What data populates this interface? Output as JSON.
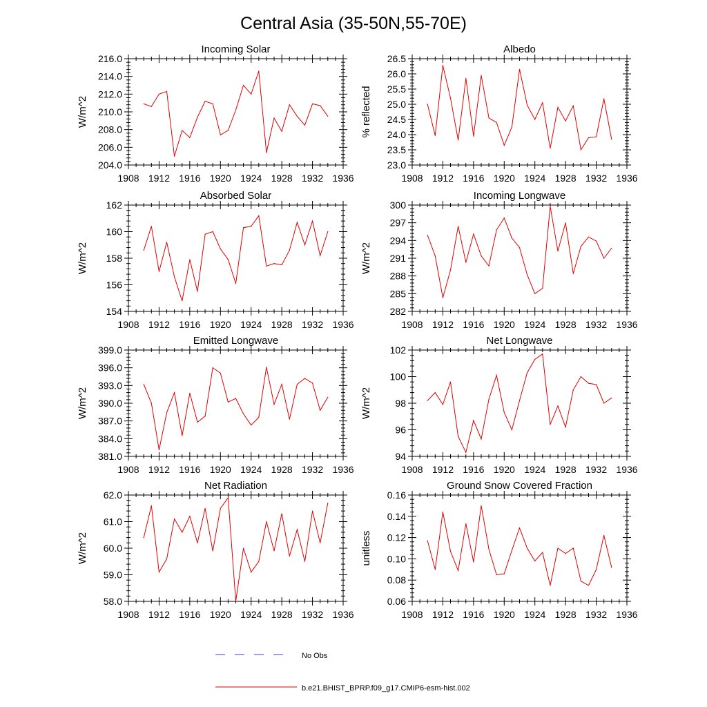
{
  "page_title": "Central Asia (35-50N,55-70E)",
  "legend": {
    "obs_label": "No Obs",
    "model_label": "b.e21.BHIST_BPRP.f09_g17.CMIP6-esm-hist.002",
    "obs_color": "#3b3bd6",
    "model_color": "#e00000"
  },
  "chart_data": [
    {
      "type": "line",
      "title": "Incoming Solar",
      "ylabel": "W/m^2",
      "xlim": [
        1908,
        1936
      ],
      "ylim": [
        204,
        216
      ],
      "x_ticks": [
        "1908",
        "1912",
        "1916",
        "1920",
        "1924",
        "1928",
        "1932",
        "1936"
      ],
      "y_ticks": [
        "204.0",
        "206.0",
        "208.0",
        "210.0",
        "212.0",
        "214.0",
        "216.0"
      ],
      "y_label_ticks": [
        204,
        206,
        208,
        210,
        212,
        214,
        216
      ],
      "x": [
        1910,
        1911,
        1912,
        1913,
        1914,
        1915,
        1916,
        1917,
        1918,
        1919,
        1920,
        1921,
        1922,
        1923,
        1924,
        1925,
        1926,
        1927,
        1928,
        1929,
        1930,
        1931,
        1932,
        1933,
        1934
      ],
      "values": [
        210.9,
        210.6,
        212.0,
        212.3,
        205.0,
        207.9,
        207.1,
        209.4,
        211.2,
        210.9,
        207.4,
        207.9,
        210.2,
        213.0,
        212.0,
        214.6,
        205.4,
        209.3,
        207.8,
        210.8,
        209.5,
        208.5,
        210.9,
        210.7,
        209.5
      ]
    },
    {
      "type": "line",
      "title": "Albedo",
      "ylabel": "% reflected",
      "xlim": [
        1908,
        1936
      ],
      "ylim": [
        23,
        26.5
      ],
      "x_ticks": [
        "1908",
        "1912",
        "1916",
        "1920",
        "1924",
        "1928",
        "1932",
        "1936"
      ],
      "y_ticks": [
        "23.0",
        "23.5",
        "24.0",
        "24.5",
        "25.0",
        "25.5",
        "26.0",
        "26.5"
      ],
      "y_label_ticks": [
        23,
        23.5,
        24,
        24.5,
        25,
        25.5,
        26,
        26.5
      ],
      "x": [
        1910,
        1911,
        1912,
        1913,
        1914,
        1915,
        1916,
        1917,
        1918,
        1919,
        1920,
        1921,
        1922,
        1923,
        1924,
        1925,
        1926,
        1927,
        1928,
        1929,
        1930,
        1931,
        1932,
        1933,
        1934
      ],
      "values": [
        25.0,
        23.97,
        26.28,
        25.2,
        23.82,
        25.85,
        23.95,
        25.95,
        24.55,
        24.4,
        23.65,
        24.25,
        26.15,
        24.97,
        24.5,
        25.05,
        23.55,
        24.9,
        24.45,
        24.95,
        23.5,
        23.9,
        23.93,
        25.18,
        23.85
      ]
    },
    {
      "type": "line",
      "title": "Absorbed Solar",
      "ylabel": "W/m^2",
      "xlim": [
        1908,
        1936
      ],
      "ylim": [
        154,
        162
      ],
      "x_ticks": [
        "1908",
        "1912",
        "1916",
        "1920",
        "1924",
        "1928",
        "1932",
        "1936"
      ],
      "y_ticks": [
        "154",
        "156",
        "158",
        "160",
        "162"
      ],
      "y_label_ticks": [
        154,
        156,
        158,
        160,
        162
      ],
      "x": [
        1910,
        1911,
        1912,
        1913,
        1914,
        1915,
        1916,
        1917,
        1918,
        1919,
        1920,
        1921,
        1922,
        1923,
        1924,
        1925,
        1926,
        1927,
        1928,
        1929,
        1930,
        1931,
        1932,
        1933,
        1934
      ],
      "values": [
        158.6,
        160.4,
        157.0,
        159.2,
        156.6,
        154.8,
        157.9,
        155.5,
        159.8,
        160.0,
        158.7,
        157.9,
        156.1,
        160.3,
        160.4,
        161.2,
        157.4,
        157.6,
        157.5,
        158.6,
        160.7,
        159.0,
        160.8,
        158.2,
        160.0
      ]
    },
    {
      "type": "line",
      "title": "Incoming Longwave",
      "ylabel": "W/m^2",
      "xlim": [
        1908,
        1936
      ],
      "ylim": [
        282,
        300
      ],
      "x_ticks": [
        "1908",
        "1912",
        "1916",
        "1920",
        "1924",
        "1928",
        "1932",
        "1936"
      ],
      "y_ticks": [
        "282",
        "285",
        "288",
        "291",
        "294",
        "297",
        "300"
      ],
      "y_label_ticks": [
        282,
        285,
        288,
        291,
        294,
        297,
        300
      ],
      "x": [
        1910,
        1911,
        1912,
        1913,
        1914,
        1915,
        1916,
        1917,
        1918,
        1919,
        1920,
        1921,
        1922,
        1923,
        1924,
        1925,
        1926,
        1927,
        1928,
        1929,
        1930,
        1931,
        1932,
        1933,
        1934
      ],
      "values": [
        294.9,
        291.4,
        284.3,
        289.0,
        296.4,
        290.3,
        295.1,
        291.4,
        289.7,
        295.8,
        297.8,
        294.4,
        292.8,
        288.2,
        285.0,
        285.9,
        299.8,
        292.2,
        297.0,
        288.4,
        293.0,
        294.6,
        293.9,
        291.0,
        292.7
      ]
    },
    {
      "type": "line",
      "title": "Emitted Longwave",
      "ylabel": "W/m^2",
      "xlim": [
        1908,
        1936
      ],
      "ylim": [
        381,
        399
      ],
      "x_ticks": [
        "1908",
        "1912",
        "1916",
        "1920",
        "1924",
        "1928",
        "1932",
        "1936"
      ],
      "y_ticks": [
        "381.0",
        "384.0",
        "387.0",
        "390.0",
        "393.0",
        "396.0",
        "399.0"
      ],
      "y_label_ticks": [
        381,
        384,
        387,
        390,
        393,
        396,
        399
      ],
      "x": [
        1910,
        1911,
        1912,
        1913,
        1914,
        1915,
        1916,
        1917,
        1918,
        1919,
        1920,
        1921,
        1922,
        1923,
        1924,
        1925,
        1926,
        1927,
        1928,
        1929,
        1930,
        1931,
        1932,
        1933,
        1934
      ],
      "values": [
        393.2,
        390.0,
        382.1,
        388.4,
        391.8,
        384.5,
        391.7,
        386.8,
        387.8,
        396.0,
        395.1,
        390.2,
        390.8,
        388.2,
        386.3,
        387.6,
        396.1,
        389.8,
        393.2,
        387.3,
        393.2,
        394.2,
        393.4,
        388.8,
        391.0
      ]
    },
    {
      "type": "line",
      "title": "Net Longwave",
      "ylabel": "W/m^2",
      "xlim": [
        1908,
        1936
      ],
      "ylim": [
        94,
        102
      ],
      "x_ticks": [
        "1908",
        "1912",
        "1916",
        "1920",
        "1924",
        "1928",
        "1932",
        "1936"
      ],
      "y_ticks": [
        "94",
        "96",
        "98",
        "100",
        "102"
      ],
      "y_label_ticks": [
        94,
        96,
        98,
        100,
        102
      ],
      "x": [
        1910,
        1911,
        1912,
        1913,
        1914,
        1915,
        1916,
        1917,
        1918,
        1919,
        1920,
        1921,
        1922,
        1923,
        1924,
        1925,
        1926,
        1927,
        1928,
        1929,
        1930,
        1931,
        1932,
        1933,
        1934
      ],
      "values": [
        98.2,
        98.8,
        97.9,
        99.6,
        95.5,
        94.3,
        96.7,
        95.3,
        98.3,
        100.1,
        97.3,
        96.0,
        98.2,
        100.3,
        101.3,
        101.7,
        96.4,
        97.8,
        96.2,
        99.0,
        100.0,
        99.5,
        99.4,
        98.0,
        98.4
      ]
    },
    {
      "type": "line",
      "title": "Net Radiation",
      "ylabel": "W/m^2",
      "xlim": [
        1908,
        1936
      ],
      "ylim": [
        58,
        62
      ],
      "x_ticks": [
        "1908",
        "1912",
        "1916",
        "1920",
        "1924",
        "1928",
        "1932",
        "1936"
      ],
      "y_ticks": [
        "58.0",
        "59.0",
        "60.0",
        "61.0",
        "62.0"
      ],
      "y_label_ticks": [
        58,
        59,
        60,
        61,
        62
      ],
      "x": [
        1910,
        1911,
        1912,
        1913,
        1914,
        1915,
        1916,
        1917,
        1918,
        1919,
        1920,
        1921,
        1922,
        1923,
        1924,
        1925,
        1926,
        1927,
        1928,
        1929,
        1930,
        1931,
        1932,
        1933,
        1934
      ],
      "values": [
        60.4,
        61.6,
        59.1,
        59.6,
        61.1,
        60.6,
        61.2,
        60.2,
        61.5,
        59.9,
        61.5,
        61.9,
        58.0,
        60.0,
        59.1,
        59.5,
        61.0,
        59.9,
        61.3,
        59.7,
        60.7,
        59.5,
        61.4,
        60.2,
        61.7
      ]
    },
    {
      "type": "line",
      "title": "Ground Snow Covered Fraction",
      "ylabel": "unitless",
      "xlim": [
        1908,
        1936
      ],
      "ylim": [
        0.06,
        0.16
      ],
      "x_ticks": [
        "1908",
        "1912",
        "1916",
        "1920",
        "1924",
        "1928",
        "1932",
        "1936"
      ],
      "y_ticks": [
        "0.06",
        "0.08",
        "0.10",
        "0.12",
        "0.14",
        "0.16"
      ],
      "y_label_ticks": [
        0.06,
        0.08,
        0.1,
        0.12,
        0.14,
        0.16
      ],
      "x": [
        1910,
        1911,
        1912,
        1913,
        1914,
        1915,
        1916,
        1917,
        1918,
        1919,
        1920,
        1921,
        1922,
        1923,
        1924,
        1925,
        1926,
        1927,
        1928,
        1929,
        1930,
        1931,
        1932,
        1933,
        1934
      ],
      "values": [
        0.117,
        0.09,
        0.144,
        0.107,
        0.089,
        0.133,
        0.097,
        0.15,
        0.109,
        0.085,
        0.086,
        0.108,
        0.129,
        0.11,
        0.098,
        0.106,
        0.075,
        0.11,
        0.105,
        0.11,
        0.079,
        0.075,
        0.09,
        0.122,
        0.092
      ]
    }
  ]
}
